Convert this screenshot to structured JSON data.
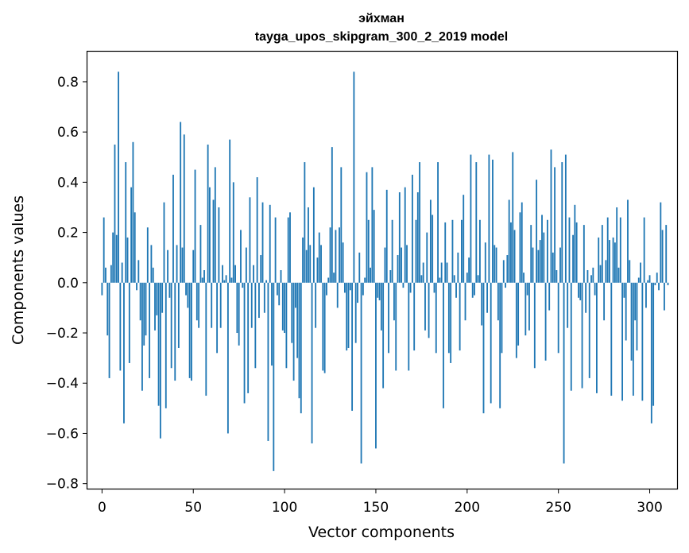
{
  "chart_data": {
    "type": "bar",
    "title": "эйхман",
    "subtitle": "tayga_upos_skipgram_300_2_2019 model",
    "xlabel": "Vector components",
    "ylabel": "Components values",
    "xlim": [
      -8,
      315
    ],
    "ylim": [
      -0.82,
      0.92
    ],
    "x_ticks": [
      0,
      50,
      100,
      150,
      200,
      250,
      300
    ],
    "y_ticks": [
      0.8,
      0.6,
      0.4,
      0.2,
      0.0,
      -0.2,
      -0.4,
      -0.6,
      -0.8
    ],
    "y_tick_labels": [
      "0.8",
      "0.6",
      "0.4",
      "0.2",
      "0.0",
      "−0.2",
      "−0.4",
      "−0.6",
      "−0.8"
    ],
    "bar_color": "#1f77b4",
    "values": [
      -0.05,
      0.26,
      0.06,
      -0.21,
      -0.38,
      0.07,
      0.2,
      0.55,
      0.19,
      0.84,
      -0.35,
      0.08,
      -0.56,
      0.48,
      0.18,
      -0.32,
      0.38,
      0.56,
      0.28,
      -0.03,
      0.09,
      -0.15,
      -0.43,
      -0.25,
      -0.21,
      0.22,
      -0.38,
      0.15,
      0.06,
      -0.19,
      -0.13,
      -0.49,
      -0.62,
      -0.12,
      0.32,
      -0.5,
      0.13,
      -0.06,
      -0.34,
      0.43,
      -0.39,
      0.15,
      -0.26,
      0.64,
      0.14,
      0.59,
      -0.05,
      -0.1,
      -0.38,
      -0.39,
      0.13,
      0.45,
      -0.15,
      -0.18,
      0.23,
      0.02,
      0.05,
      -0.45,
      0.55,
      0.38,
      -0.18,
      0.33,
      0.46,
      -0.28,
      0.3,
      -0.18,
      0.07,
      0.01,
      0.03,
      -0.6,
      0.57,
      0.02,
      0.4,
      0.07,
      -0.2,
      -0.25,
      0.21,
      -0.02,
      -0.48,
      0.14,
      -0.44,
      0.34,
      -0.18,
      0.07,
      -0.34,
      0.42,
      -0.14,
      0.11,
      0.32,
      -0.12,
      0.01,
      -0.63,
      0.31,
      -0.33,
      -0.75,
      0.26,
      -0.05,
      -0.09,
      0.05,
      -0.19,
      -0.2,
      -0.34,
      0.26,
      0.28,
      -0.24,
      -0.39,
      -0.1,
      -0.3,
      -0.46,
      -0.52,
      0.18,
      0.48,
      0.13,
      0.3,
      0.15,
      -0.64,
      0.38,
      -0.18,
      0.1,
      0.2,
      0.15,
      -0.35,
      -0.36,
      -0.05,
      0.02,
      0.22,
      0.54,
      0.04,
      0.21,
      -0.1,
      0.22,
      0.46,
      0.16,
      -0.04,
      -0.27,
      -0.26,
      -0.03,
      -0.51,
      0.84,
      -0.24,
      -0.08,
      0.12,
      -0.72,
      -0.05,
      0.02,
      0.44,
      0.25,
      0.06,
      0.46,
      0.29,
      -0.66,
      -0.06,
      -0.07,
      -0.19,
      -0.42,
      0.14,
      0.37,
      -0.28,
      0.05,
      0.25,
      -0.15,
      -0.35,
      0.11,
      0.36,
      0.14,
      -0.02,
      0.38,
      0.15,
      -0.35,
      -0.04,
      0.43,
      -0.27,
      0.25,
      0.36,
      0.48,
      0.03,
      0.08,
      -0.19,
      0.2,
      -0.22,
      0.33,
      0.27,
      -0.04,
      -0.28,
      0.48,
      0.02,
      0.08,
      -0.5,
      0.24,
      0.08,
      -0.28,
      -0.32,
      0.25,
      0.03,
      -0.06,
      0.12,
      -0.27,
      0.25,
      0.35,
      -0.15,
      0.04,
      0.1,
      0.51,
      -0.06,
      -0.05,
      0.48,
      0.03,
      0.25,
      -0.17,
      -0.52,
      0.16,
      -0.12,
      0.51,
      -0.48,
      0.49,
      0.15,
      0.14,
      -0.15,
      -0.5,
      -0.28,
      0.09,
      -0.02,
      0.11,
      0.33,
      0.24,
      0.52,
      0.21,
      -0.3,
      -0.25,
      0.28,
      0.32,
      0.04,
      -0.21,
      -0.05,
      -0.19,
      0.23,
      0.14,
      -0.34,
      0.41,
      0.13,
      0.17,
      0.27,
      0.2,
      -0.31,
      0.25,
      -0.11,
      0.53,
      0.12,
      0.46,
      0.05,
      -0.28,
      0.14,
      0.48,
      -0.72,
      0.51,
      -0.18,
      0.26,
      -0.43,
      0.19,
      0.31,
      0.24,
      -0.06,
      -0.07,
      -0.42,
      0.23,
      -0.12,
      0.05,
      -0.38,
      0.03,
      0.06,
      -0.05,
      -0.44,
      0.18,
      0.07,
      0.23,
      -0.15,
      0.09,
      0.26,
      0.17,
      -0.45,
      0.18,
      0.16,
      0.3,
      0.06,
      0.26,
      -0.47,
      -0.06,
      -0.23,
      0.33,
      0.09,
      -0.31,
      -0.45,
      -0.15,
      -0.27,
      0.02,
      0.08,
      -0.47,
      0.26,
      -0.1,
      0.01,
      0.03,
      -0.56,
      -0.49,
      -0.01,
      0.04,
      -0.03,
      0.32,
      0.21,
      -0.11,
      0.23,
      -0.01
    ]
  }
}
